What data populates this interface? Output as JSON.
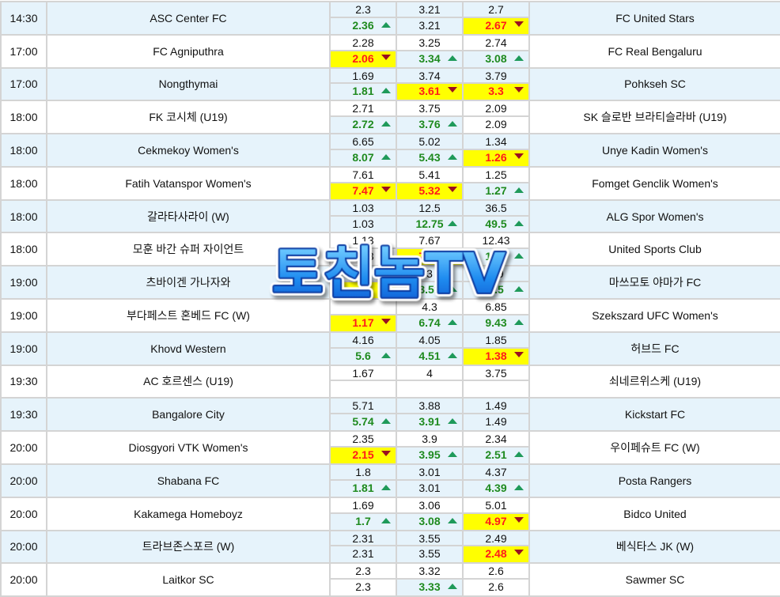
{
  "colors": {
    "row_alt": "#e6f3fb",
    "up": "#1e8a1e",
    "down": "#ff1a1a",
    "highlight": "#ffff00"
  },
  "watermark": "토친놈TV",
  "matches": [
    {
      "time": "14:30",
      "home": "ASC Center FC",
      "away": "FC United Stars",
      "open": [
        "2.3",
        "3.21",
        "2.7"
      ],
      "current": [
        {
          "v": "2.36",
          "dir": "up"
        },
        {
          "v": "3.21",
          "dir": "none"
        },
        {
          "v": "2.67",
          "dir": "down"
        }
      ]
    },
    {
      "time": "17:00",
      "home": "FC Agniputhra",
      "away": "FC Real Bengaluru",
      "open": [
        "2.28",
        "3.25",
        "2.74"
      ],
      "current": [
        {
          "v": "2.06",
          "dir": "down"
        },
        {
          "v": "3.34",
          "dir": "up"
        },
        {
          "v": "3.08",
          "dir": "up"
        }
      ]
    },
    {
      "time": "17:00",
      "home": "Nongthymai",
      "away": "Pohkseh SC",
      "open": [
        "1.69",
        "3.74",
        "3.79"
      ],
      "current": [
        {
          "v": "1.81",
          "dir": "up"
        },
        {
          "v": "3.61",
          "dir": "down"
        },
        {
          "v": "3.3",
          "dir": "down"
        }
      ]
    },
    {
      "time": "18:00",
      "home": "FK 코시체 (U19)",
      "away": "SK 슬로반 브라티슬라바 (U19)",
      "open": [
        "2.71",
        "3.75",
        "2.09"
      ],
      "current": [
        {
          "v": "2.72",
          "dir": "up"
        },
        {
          "v": "3.76",
          "dir": "up"
        },
        {
          "v": "2.09",
          "dir": "none"
        }
      ]
    },
    {
      "time": "18:00",
      "home": "Cekmekoy Women's",
      "away": "Unye Kadin Women's",
      "open": [
        "6.65",
        "5.02",
        "1.34"
      ],
      "current": [
        {
          "v": "8.07",
          "dir": "up"
        },
        {
          "v": "5.43",
          "dir": "up"
        },
        {
          "v": "1.26",
          "dir": "down"
        }
      ]
    },
    {
      "time": "18:00",
      "home": "Fatih Vatanspor Women's",
      "away": "Fomget Genclik Women's",
      "open": [
        "7.61",
        "5.41",
        "1.25"
      ],
      "current": [
        {
          "v": "7.47",
          "dir": "down"
        },
        {
          "v": "5.32",
          "dir": "down"
        },
        {
          "v": "1.27",
          "dir": "up"
        }
      ]
    },
    {
      "time": "18:00",
      "home": "갈라타사라이 (W)",
      "away": "ALG Spor Women's",
      "open": [
        "1.03",
        "12.5",
        "36.5"
      ],
      "current": [
        {
          "v": "1.03",
          "dir": "none"
        },
        {
          "v": "12.75",
          "dir": "up"
        },
        {
          "v": "49.5",
          "dir": "up"
        }
      ]
    },
    {
      "time": "18:00",
      "home": "모훈 바간 슈퍼 자이언트",
      "away": "United Sports Club",
      "open": [
        "1.13",
        "7.67",
        "12.43"
      ],
      "current": [
        {
          "v": "1.13",
          "dir": "none"
        },
        {
          "v": "7.13",
          "dir": "down"
        },
        {
          "v": "13.5",
          "dir": "up"
        }
      ]
    },
    {
      "time": "19:00",
      "home": "츠바이겐 가나자와",
      "away": "마쓰모토 야마가 FC",
      "open": [
        "",
        "3",
        "3.9"
      ],
      "current": [
        {
          "v": "",
          "dir": "down"
        },
        {
          "v": "3.51",
          "dir": "up"
        },
        {
          "v": "3.5",
          "dir": "up"
        }
      ]
    },
    {
      "time": "19:00",
      "home": "부다페스트 혼베드 FC (W)",
      "away": "Szekszard UFC Women's",
      "open": [
        "",
        "4.3",
        "6.85"
      ],
      "current": [
        {
          "v": "1.17",
          "dir": "down"
        },
        {
          "v": "6.74",
          "dir": "up"
        },
        {
          "v": "9.43",
          "dir": "up"
        }
      ]
    },
    {
      "time": "19:00",
      "home": "Khovd Western",
      "away": "허브드 FC",
      "open": [
        "4.16",
        "4.05",
        "1.85"
      ],
      "current": [
        {
          "v": "5.6",
          "dir": "up"
        },
        {
          "v": "4.51",
          "dir": "up"
        },
        {
          "v": "1.38",
          "dir": "down"
        }
      ]
    },
    {
      "time": "19:30",
      "home": "AC 호르센스 (U19)",
      "away": "쇠네르위스케 (U19)",
      "open": [
        "1.67",
        "4",
        "3.75"
      ],
      "current": [
        {
          "v": "",
          "dir": "none"
        },
        {
          "v": "",
          "dir": "none"
        },
        {
          "v": "",
          "dir": "none"
        }
      ]
    },
    {
      "time": "19:30",
      "home": "Bangalore City",
      "away": "Kickstart FC",
      "open": [
        "5.71",
        "3.88",
        "1.49"
      ],
      "current": [
        {
          "v": "5.74",
          "dir": "up"
        },
        {
          "v": "3.91",
          "dir": "up"
        },
        {
          "v": "1.49",
          "dir": "none"
        }
      ]
    },
    {
      "time": "20:00",
      "home": "Diosgyori VTK Women's",
      "away": "우이페슈트 FC (W)",
      "open": [
        "2.35",
        "3.9",
        "2.34"
      ],
      "current": [
        {
          "v": "2.15",
          "dir": "down"
        },
        {
          "v": "3.95",
          "dir": "up"
        },
        {
          "v": "2.51",
          "dir": "up"
        }
      ]
    },
    {
      "time": "20:00",
      "home": "Shabana FC",
      "away": "Posta Rangers",
      "open": [
        "1.8",
        "3.01",
        "4.37"
      ],
      "current": [
        {
          "v": "1.81",
          "dir": "up"
        },
        {
          "v": "3.01",
          "dir": "none"
        },
        {
          "v": "4.39",
          "dir": "up"
        }
      ]
    },
    {
      "time": "20:00",
      "home": "Kakamega Homeboyz",
      "away": "Bidco United",
      "open": [
        "1.69",
        "3.06",
        "5.01"
      ],
      "current": [
        {
          "v": "1.7",
          "dir": "up"
        },
        {
          "v": "3.08",
          "dir": "up"
        },
        {
          "v": "4.97",
          "dir": "down"
        }
      ]
    },
    {
      "time": "20:00",
      "home": "트라브존스포르 (W)",
      "away": "베식타스 JK (W)",
      "open": [
        "2.31",
        "3.55",
        "2.49"
      ],
      "current": [
        {
          "v": "2.31",
          "dir": "none"
        },
        {
          "v": "3.55",
          "dir": "none"
        },
        {
          "v": "2.48",
          "dir": "down"
        }
      ]
    },
    {
      "time": "20:00",
      "home": "Laitkor SC",
      "away": "Sawmer SC",
      "open": [
        "2.3",
        "3.32",
        "2.6"
      ],
      "current": [
        {
          "v": "2.3",
          "dir": "none"
        },
        {
          "v": "3.33",
          "dir": "up"
        },
        {
          "v": "2.6",
          "dir": "none"
        }
      ]
    }
  ]
}
